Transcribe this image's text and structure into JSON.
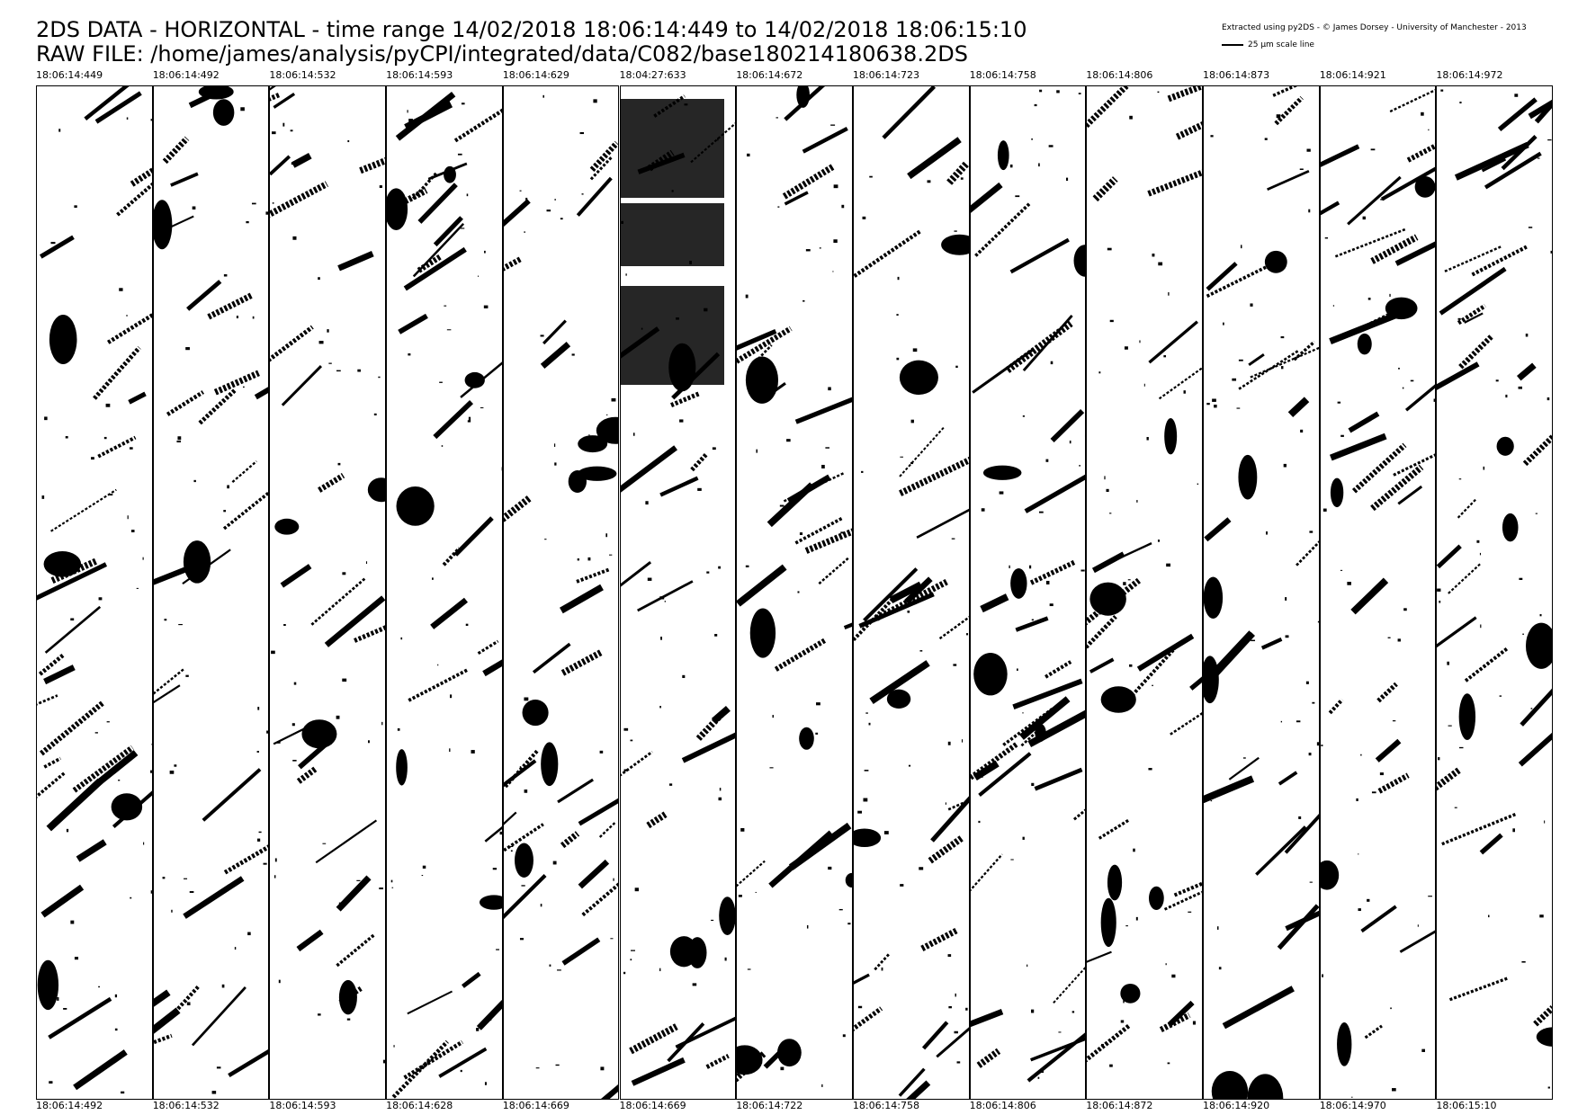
{
  "header": {
    "title_line1": "2DS DATA - HORIZONTAL - time range 14/02/2018 18:06:14:449 to 14/02/2018 18:06:15:10",
    "title_line2": "RAW FILE: /home/james/analysis/pyCPI/integrated/data/C082/base180214180638.2DS",
    "credit": "Extracted using py2DS - © James Dorsey - University of Manchester - 2013",
    "scale_label": "25 μm scale line"
  },
  "strips": [
    {
      "start": "18:06:14:449",
      "end": "18:06:14:492"
    },
    {
      "start": "18:06:14:492",
      "end": "18:06:14:532"
    },
    {
      "start": "18:06:14:532",
      "end": "18:06:14:593"
    },
    {
      "start": "18:06:14:593",
      "end": "18:06:14:628"
    },
    {
      "start": "18:06:14:629",
      "end": "18:06:14:669"
    },
    {
      "start": "18:04:27:633",
      "end": "18:06:14:669"
    },
    {
      "start": "18:06:14:672",
      "end": "18:06:14:722"
    },
    {
      "start": "18:06:14:723",
      "end": "18:06:14:758"
    },
    {
      "start": "18:06:14:758",
      "end": "18:06:14:806"
    },
    {
      "start": "18:06:14:806",
      "end": "18:06:14:872"
    },
    {
      "start": "18:06:14:873",
      "end": "18:06:14:920"
    },
    {
      "start": "18:06:14:921",
      "end": "18:06:14:970"
    },
    {
      "start": "18:06:14:972",
      "end": "18:06:15:10"
    }
  ]
}
